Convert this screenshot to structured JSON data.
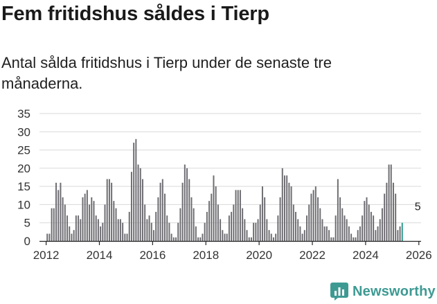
{
  "header": {
    "title": "Fem fritidshus såldes i Tierp",
    "subtitle": "Antal sålda fritidshus i Tierp under de senaste tre månaderna."
  },
  "brand": {
    "name": "Newsworthy"
  },
  "colors": {
    "bar": "#6e6d72",
    "highlight": "#2a9d8f",
    "grid": "#d9d9d9",
    "brand": "#3d9a93"
  },
  "chart_data": {
    "type": "bar",
    "title": "",
    "xlabel": "",
    "ylabel": "",
    "ylim": [
      0,
      35
    ],
    "y_ticks": [
      0,
      5,
      10,
      15,
      20,
      25,
      30,
      35
    ],
    "x_ticks": [
      "2012",
      "2014",
      "2016",
      "2018",
      "2020",
      "2022",
      "2024",
      "2026"
    ],
    "x_start": "2011-10",
    "x_end": "2026-02",
    "annotation": {
      "text": "5",
      "month": "2025-12"
    },
    "series": [
      {
        "name": "",
        "start_month": "2012-01",
        "values": [
          2,
          2,
          9,
          9,
          16,
          14,
          16,
          12,
          10,
          7,
          4,
          2,
          3,
          7,
          7,
          6,
          12,
          13,
          14,
          10,
          12,
          11,
          7,
          6,
          4,
          5,
          10,
          17,
          17,
          16,
          11,
          9,
          6,
          6,
          5,
          2,
          2,
          8,
          19,
          27,
          28,
          21,
          20,
          17,
          10,
          6,
          7,
          5,
          3,
          8,
          12,
          16,
          17,
          13,
          7,
          5,
          2,
          1,
          1,
          5,
          9,
          16,
          21,
          20,
          17,
          12,
          9,
          4,
          1,
          1,
          2,
          5,
          8,
          11,
          13,
          18,
          15,
          10,
          6,
          3,
          2,
          2,
          7,
          8,
          10,
          14,
          14,
          14,
          9,
          6,
          3,
          1,
          1,
          5,
          5,
          6,
          10,
          15,
          12,
          6,
          3,
          2,
          1,
          2,
          7,
          12,
          20,
          18,
          18,
          16,
          15,
          10,
          8,
          6,
          4,
          2,
          3,
          7,
          10,
          13,
          14,
          15,
          12,
          9,
          6,
          4,
          4,
          3,
          1,
          1,
          7,
          17,
          12,
          9,
          7,
          6,
          4,
          2,
          1,
          1,
          3,
          4,
          7,
          11,
          12,
          10,
          8,
          7,
          3,
          4,
          6,
          9,
          13,
          16,
          21,
          21,
          16,
          13,
          3,
          4,
          5
        ],
        "highlight_last": 1
      }
    ]
  }
}
